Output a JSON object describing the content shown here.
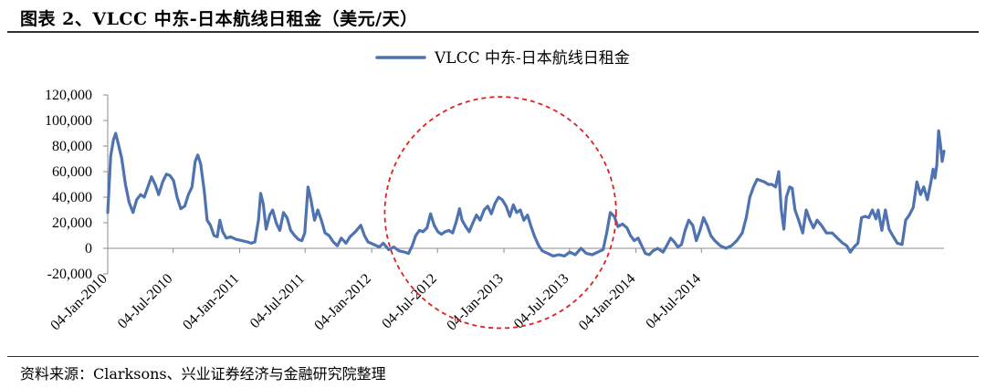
{
  "figure": {
    "title": "图表 2、VLCC 中东-日本航线日租金（美元/天）",
    "source": "资料来源：Clarksons、兴业证券经济与金融研究院整理"
  },
  "chart_data": {
    "type": "line",
    "title": "",
    "xlabel": "",
    "ylabel": "",
    "legend_position": "top-center",
    "grid": false,
    "series": [
      {
        "name": "VLCC 中东-日本航线日租金",
        "color": "#4f73b0",
        "points": [
          [
            "2010-01-04",
            28000
          ],
          [
            "2010-01-12",
            72000
          ],
          [
            "2010-01-20",
            85000
          ],
          [
            "2010-01-26",
            90000
          ],
          [
            "2010-02-02",
            82000
          ],
          [
            "2010-02-12",
            70000
          ],
          [
            "2010-02-22",
            50000
          ],
          [
            "2010-03-04",
            36000
          ],
          [
            "2010-03-15",
            28000
          ],
          [
            "2010-03-25",
            38000
          ],
          [
            "2010-04-05",
            42000
          ],
          [
            "2010-04-15",
            40000
          ],
          [
            "2010-04-25",
            48000
          ],
          [
            "2010-05-05",
            56000
          ],
          [
            "2010-05-15",
            50000
          ],
          [
            "2010-05-25",
            42000
          ],
          [
            "2010-06-05",
            52000
          ],
          [
            "2010-06-15",
            58000
          ],
          [
            "2010-06-25",
            57000
          ],
          [
            "2010-07-05",
            53000
          ],
          [
            "2010-07-15",
            40000
          ],
          [
            "2010-07-25",
            31000
          ],
          [
            "2010-08-05",
            33000
          ],
          [
            "2010-08-15",
            42000
          ],
          [
            "2010-08-25",
            48000
          ],
          [
            "2010-09-03",
            68000
          ],
          [
            "2010-09-10",
            73000
          ],
          [
            "2010-09-18",
            66000
          ],
          [
            "2010-09-28",
            45000
          ],
          [
            "2010-10-06",
            22000
          ],
          [
            "2010-10-15",
            18000
          ],
          [
            "2010-10-25",
            10000
          ],
          [
            "2010-11-03",
            9000
          ],
          [
            "2010-11-10",
            22000
          ],
          [
            "2010-11-18",
            13000
          ],
          [
            "2010-11-28",
            8000
          ],
          [
            "2010-12-10",
            9000
          ],
          [
            "2010-12-25",
            7000
          ],
          [
            "2011-01-10",
            6000
          ],
          [
            "2011-01-25",
            5000
          ],
          [
            "2011-02-05",
            4000
          ],
          [
            "2011-02-15",
            5000
          ],
          [
            "2011-02-25",
            22000
          ],
          [
            "2011-03-03",
            43000
          ],
          [
            "2011-03-10",
            35000
          ],
          [
            "2011-03-18",
            15000
          ],
          [
            "2011-03-28",
            26000
          ],
          [
            "2011-04-05",
            30000
          ],
          [
            "2011-04-15",
            20000
          ],
          [
            "2011-04-25",
            14000
          ],
          [
            "2011-05-05",
            28000
          ],
          [
            "2011-05-15",
            24000
          ],
          [
            "2011-05-25",
            14000
          ],
          [
            "2011-06-05",
            10000
          ],
          [
            "2011-06-15",
            7000
          ],
          [
            "2011-06-25",
            6000
          ],
          [
            "2011-07-03",
            12000
          ],
          [
            "2011-07-12",
            48000
          ],
          [
            "2011-07-20",
            38000
          ],
          [
            "2011-07-30",
            22000
          ],
          [
            "2011-08-08",
            30000
          ],
          [
            "2011-08-18",
            22000
          ],
          [
            "2011-08-28",
            12000
          ],
          [
            "2011-09-08",
            10000
          ],
          [
            "2011-09-20",
            5000
          ],
          [
            "2011-10-01",
            2000
          ],
          [
            "2011-10-12",
            8000
          ],
          [
            "2011-10-25",
            4000
          ],
          [
            "2011-11-05",
            9000
          ],
          [
            "2011-11-20",
            13000
          ],
          [
            "2011-12-05",
            18000
          ],
          [
            "2011-12-15",
            10000
          ],
          [
            "2011-12-25",
            5000
          ],
          [
            "2012-01-10",
            3000
          ],
          [
            "2012-01-25",
            1000
          ],
          [
            "2012-02-05",
            4000
          ],
          [
            "2012-02-20",
            -1000
          ],
          [
            "2012-03-05",
            1000
          ],
          [
            "2012-03-20",
            -2000
          ],
          [
            "2012-04-05",
            -3000
          ],
          [
            "2012-04-15",
            -4000
          ],
          [
            "2012-04-25",
            2000
          ],
          [
            "2012-05-05",
            10000
          ],
          [
            "2012-05-15",
            14000
          ],
          [
            "2012-05-25",
            13000
          ],
          [
            "2012-06-05",
            16000
          ],
          [
            "2012-06-15",
            27000
          ],
          [
            "2012-06-25",
            18000
          ],
          [
            "2012-07-05",
            13000
          ],
          [
            "2012-07-15",
            11000
          ],
          [
            "2012-07-25",
            13000
          ],
          [
            "2012-08-05",
            14000
          ],
          [
            "2012-08-15",
            12000
          ],
          [
            "2012-08-25",
            21000
          ],
          [
            "2012-09-03",
            31000
          ],
          [
            "2012-09-10",
            22000
          ],
          [
            "2012-09-20",
            17000
          ],
          [
            "2012-09-30",
            13000
          ],
          [
            "2012-10-10",
            20000
          ],
          [
            "2012-10-20",
            26000
          ],
          [
            "2012-10-30",
            22000
          ],
          [
            "2012-11-10",
            30000
          ],
          [
            "2012-11-20",
            33000
          ],
          [
            "2012-11-30",
            27000
          ],
          [
            "2012-12-10",
            35000
          ],
          [
            "2012-12-20",
            40000
          ],
          [
            "2012-12-30",
            38000
          ],
          [
            "2013-01-10",
            33000
          ],
          [
            "2013-01-20",
            25000
          ],
          [
            "2013-01-30",
            34000
          ],
          [
            "2013-02-08",
            28000
          ],
          [
            "2013-02-18",
            30000
          ],
          [
            "2013-02-28",
            22000
          ],
          [
            "2013-03-10",
            26000
          ],
          [
            "2013-03-20",
            17000
          ],
          [
            "2013-03-30",
            9000
          ],
          [
            "2013-04-10",
            2000
          ],
          [
            "2013-04-20",
            -2000
          ],
          [
            "2013-05-05",
            -4000
          ],
          [
            "2013-05-20",
            -6000
          ],
          [
            "2013-06-05",
            -5000
          ],
          [
            "2013-06-20",
            -6000
          ],
          [
            "2013-07-05",
            -3000
          ],
          [
            "2013-07-20",
            -5000
          ],
          [
            "2013-08-05",
            0
          ],
          [
            "2013-08-20",
            -4000
          ],
          [
            "2013-09-05",
            -5000
          ],
          [
            "2013-09-20",
            -3000
          ],
          [
            "2013-10-05",
            -1000
          ],
          [
            "2013-10-15",
            12000
          ],
          [
            "2013-10-25",
            28000
          ],
          [
            "2013-11-05",
            25000
          ],
          [
            "2013-11-15",
            17000
          ],
          [
            "2013-11-28",
            19000
          ],
          [
            "2013-12-10",
            16000
          ],
          [
            "2013-12-20",
            10000
          ],
          [
            "2013-12-30",
            6000
          ],
          [
            "2014-01-10",
            8000
          ],
          [
            "2014-01-20",
            2000
          ],
          [
            "2014-01-30",
            -4000
          ],
          [
            "2014-02-10",
            -5000
          ],
          [
            "2014-02-20",
            -2000
          ],
          [
            "2014-03-05",
            0
          ],
          [
            "2014-03-20",
            -3000
          ],
          [
            "2014-04-01",
            3000
          ],
          [
            "2014-04-10",
            8000
          ],
          [
            "2014-04-20",
            5000
          ],
          [
            "2014-04-30",
            1000
          ],
          [
            "2014-05-10",
            3000
          ],
          [
            "2014-05-20",
            14000
          ],
          [
            "2014-05-30",
            22000
          ],
          [
            "2014-06-10",
            18000
          ],
          [
            "2014-06-20",
            6000
          ],
          [
            "2014-06-30",
            14000
          ],
          [
            "2014-07-10",
            24000
          ],
          [
            "2014-07-20",
            18000
          ],
          [
            "2014-07-30",
            10000
          ],
          [
            "2014-08-10",
            6000
          ],
          [
            "2014-08-25",
            2000
          ],
          [
            "2014-09-10",
            0
          ],
          [
            "2014-09-25",
            2000
          ],
          [
            "2014-10-10",
            6000
          ],
          [
            "2014-10-25",
            12000
          ],
          [
            "2014-11-05",
            24000
          ],
          [
            "2014-11-15",
            40000
          ],
          [
            "2014-11-25",
            48000
          ],
          [
            "2014-12-05",
            54000
          ],
          [
            "2014-12-15",
            53000
          ],
          [
            "2014-12-25",
            52000
          ],
          [
            "2015-01-05",
            50000
          ],
          [
            "2015-01-15",
            50000
          ],
          [
            "2015-01-25",
            48000
          ],
          [
            "2015-02-03",
            60000
          ],
          [
            "2015-02-10",
            30000
          ],
          [
            "2015-02-17",
            15000
          ],
          [
            "2015-02-24",
            40000
          ],
          [
            "2015-03-05",
            48000
          ],
          [
            "2015-03-12",
            47000
          ],
          [
            "2015-03-20",
            30000
          ],
          [
            "2015-03-30",
            22000
          ],
          [
            "2015-04-10",
            12000
          ],
          [
            "2015-04-20",
            30000
          ],
          [
            "2015-04-30",
            22000
          ],
          [
            "2015-05-10",
            16000
          ],
          [
            "2015-05-20",
            22000
          ],
          [
            "2015-06-01",
            18000
          ],
          [
            "2015-06-15",
            12000
          ],
          [
            "2015-07-01",
            12000
          ],
          [
            "2015-07-15",
            8000
          ],
          [
            "2015-07-30",
            4000
          ],
          [
            "2015-08-10",
            2000
          ],
          [
            "2015-08-20",
            -3000
          ],
          [
            "2015-08-30",
            1000
          ],
          [
            "2015-09-10",
            4000
          ],
          [
            "2015-09-20",
            24000
          ],
          [
            "2015-09-30",
            25000
          ],
          [
            "2015-10-10",
            24000
          ],
          [
            "2015-10-20",
            30000
          ],
          [
            "2015-10-30",
            23000
          ],
          [
            "2015-11-05",
            30000
          ],
          [
            "2015-11-15",
            14000
          ],
          [
            "2015-11-25",
            30000
          ],
          [
            "2015-12-05",
            15000
          ],
          [
            "2015-12-15",
            10000
          ],
          [
            "2015-12-28",
            4000
          ],
          [
            "2016-01-10",
            3000
          ],
          [
            "2016-01-20",
            22000
          ],
          [
            "2016-01-30",
            26000
          ],
          [
            "2016-02-10",
            32000
          ],
          [
            "2016-02-20",
            52000
          ],
          [
            "2016-03-01",
            42000
          ],
          [
            "2016-03-10",
            48000
          ],
          [
            "2016-03-20",
            38000
          ],
          [
            "2016-03-30",
            52000
          ],
          [
            "2016-04-05",
            62000
          ],
          [
            "2016-04-10",
            55000
          ],
          [
            "2016-04-15",
            65000
          ],
          [
            "2016-04-20",
            92000
          ],
          [
            "2016-04-25",
            82000
          ],
          [
            "2016-04-30",
            68000
          ],
          [
            "2016-05-05",
            76000
          ]
        ]
      }
    ],
    "x_axis": {
      "type": "date",
      "range": [
        "2010-01-04",
        "2016-05-05"
      ],
      "tick_dates": [
        "2010-01-04",
        "2010-07-04",
        "2011-01-04",
        "2011-07-04",
        "2012-01-04",
        "2012-07-04",
        "2013-01-04",
        "2013-07-04",
        "2014-01-04",
        "2014-07-04"
      ],
      "tick_labels": [
        "04-Jan-2010",
        "04-Jul-2010",
        "04-Jan-2011",
        "04-Jul-2011",
        "04-Jan-2012",
        "04-Jul-2012",
        "04-Jan-2013",
        "04-Jul-2013",
        "04-Jan-2014",
        "04-Jul-2014"
      ],
      "tick_label_rotation_deg": -45
    },
    "y_axis": {
      "range": [
        -20000,
        120000
      ],
      "ticks": [
        -20000,
        0,
        20000,
        40000,
        60000,
        80000,
        100000,
        120000
      ],
      "tick_labels": [
        "-20,000",
        "0",
        "20,000",
        "40,000",
        "60,000",
        "80,000",
        "100,000",
        "120,000"
      ]
    },
    "annotations": [
      {
        "type": "dashed-circle",
        "color": "#e02020",
        "center": [
          "2012-12-25",
          28000
        ],
        "radius_days": 320
      }
    ]
  }
}
